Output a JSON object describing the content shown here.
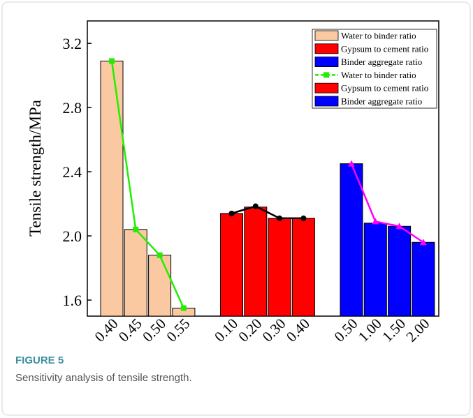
{
  "chart_data": {
    "type": "bar",
    "categories": [
      "0.40",
      "0.45",
      "0.50",
      "0.55",
      null,
      "0.10",
      "0.20",
      "0.30",
      "0.40",
      null,
      "0.50",
      "1.00",
      "1.50",
      "2.00"
    ],
    "y_label": "Tensile strength/MPa",
    "ylim": [
      1.5,
      3.34
    ],
    "yticks": [
      1.6,
      {
        "value": 2,
        "label": "2.0"
      },
      2.4,
      2.8,
      3.2
    ],
    "series": [
      {
        "name": "Water to binder ratio",
        "type": "bar",
        "color": "#fbc9a1",
        "values": [
          3.09,
          2.04,
          1.88,
          1.55,
          null,
          null,
          null,
          null,
          null,
          null,
          null,
          null,
          null,
          null
        ]
      },
      {
        "name": "Gypsum to cement ratio",
        "type": "bar",
        "color": "#ff0000",
        "values": [
          null,
          null,
          null,
          null,
          null,
          2.14,
          2.18,
          2.11,
          2.11,
          null,
          null,
          null,
          null,
          null
        ]
      },
      {
        "name": "Binder aggregate ratio",
        "type": "bar",
        "color": "#0000ff",
        "values": [
          null,
          null,
          null,
          null,
          null,
          null,
          null,
          null,
          null,
          null,
          2.45,
          2.08,
          2.06,
          1.96
        ]
      },
      {
        "name": "Water to binder ratio",
        "type": "line",
        "color": "#22ee00",
        "marker": "square",
        "values": [
          3.09,
          2.04,
          1.88,
          1.55,
          null,
          null,
          null,
          null,
          null,
          null,
          null,
          null,
          null,
          null
        ]
      },
      {
        "name": "Gypsum to cement ratio",
        "type": "line",
        "color": "#000000",
        "marker": "circle",
        "legend_style": "bar",
        "legend_color": "#ff0000",
        "values": [
          null,
          null,
          null,
          null,
          null,
          2.14,
          2.185,
          2.11,
          2.11,
          null,
          null,
          null,
          null,
          null
        ]
      },
      {
        "name": "Binder aggregate ratio",
        "type": "line",
        "color": "#ff00ff",
        "marker": "triangle",
        "legend_style": "bar",
        "legend_color": "#0000ff",
        "values": [
          null,
          null,
          null,
          null,
          null,
          null,
          null,
          null,
          null,
          null,
          2.45,
          2.09,
          2.06,
          1.96
        ]
      }
    ]
  },
  "figure": {
    "label": "FIGURE 5",
    "caption": "Sensitivity analysis of tensile strength."
  }
}
